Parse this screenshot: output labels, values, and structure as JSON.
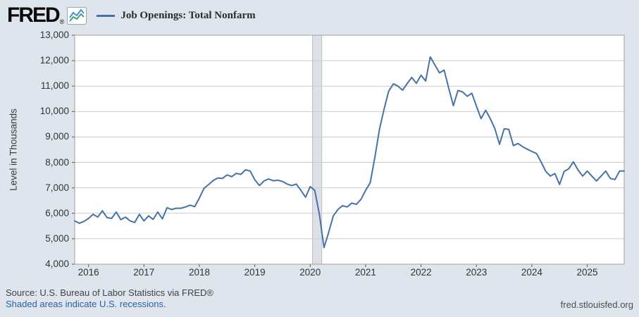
{
  "header": {
    "logo_text": "FRED",
    "registered_mark": "®",
    "legend_label": "Job Openings: Total Nonfarm"
  },
  "axes": {
    "y_axis_title": "Level in Thousands",
    "y_ticks": [
      "13,000",
      "12,000",
      "11,000",
      "10,000",
      "9,000",
      "8,000",
      "7,000",
      "6,000",
      "5,000",
      "4,000"
    ],
    "x_ticks": [
      "2016",
      "2017",
      "2018",
      "2019",
      "2020",
      "2021",
      "2022",
      "2023",
      "2024",
      "2025"
    ]
  },
  "footer": {
    "source_line": "Source: U.S. Bureau of Labor Statistics via FRED®",
    "recession_note": "Shaded areas indicate U.S. recessions.",
    "site_link": "fred.stlouisfed.org"
  },
  "colors": {
    "line": "#4572a7",
    "page_background": "#dee5ed",
    "plot_background": "#ffffff",
    "gridline": "#cccccc",
    "plot_border": "#9d9d9d",
    "tick_mark": "#555555",
    "recession_band": "#dde1e6",
    "recession_band_edge": "#b9bfc7",
    "link_text": "#2d61a0",
    "footer_text": "#424242",
    "icon_line_blue": "#4a90d9",
    "icon_line_green": "#3fa17c"
  },
  "chart_data": {
    "type": "line",
    "title": "Job Openings: Total Nonfarm",
    "ylabel": "Level in Thousands",
    "unit": "thousands",
    "frequency": "monthly",
    "x_start": "2015-10",
    "x_end": "2025-09",
    "ylim": [
      4000,
      13000
    ],
    "y_gridline_step": 1000,
    "grid": "horizontal-only",
    "legend_position": "top-left",
    "recessions": [
      {
        "start": "2020-02",
        "end": "2020-04"
      }
    ],
    "series": [
      {
        "name": "Job Openings: Total Nonfarm",
        "color": "#4572a7",
        "values": [
          5700,
          5610,
          5680,
          5800,
          5960,
          5850,
          6100,
          5830,
          5800,
          6050,
          5750,
          5850,
          5700,
          5640,
          5960,
          5700,
          5900,
          5760,
          6050,
          5780,
          6220,
          6150,
          6200,
          6200,
          6250,
          6320,
          6260,
          6600,
          6980,
          7130,
          7290,
          7390,
          7370,
          7510,
          7440,
          7570,
          7530,
          7710,
          7660,
          7320,
          7090,
          7270,
          7350,
          7280,
          7300,
          7250,
          7150,
          7090,
          7150,
          6900,
          6630,
          7050,
          6900,
          5950,
          4650,
          5250,
          5900,
          6150,
          6300,
          6250,
          6400,
          6350,
          6550,
          6900,
          7200,
          8200,
          9300,
          10100,
          10800,
          11090,
          11000,
          10840,
          11100,
          11340,
          11110,
          11430,
          11200,
          12150,
          11830,
          11520,
          11630,
          10920,
          10230,
          10830,
          10770,
          10600,
          10720,
          10210,
          9720,
          10050,
          9720,
          9320,
          8710,
          9320,
          9300,
          8660,
          8745,
          8620,
          8520,
          8430,
          8350,
          8020,
          7650,
          7465,
          7560,
          7135,
          7645,
          7750,
          8025,
          7700,
          7465,
          7660,
          7460,
          7270,
          7465,
          7660,
          7370,
          7325,
          7660,
          7660
        ]
      }
    ]
  }
}
